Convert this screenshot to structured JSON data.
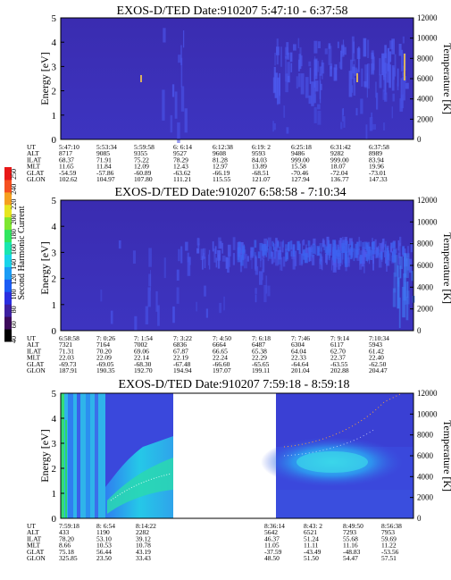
{
  "chart_data": [
    {
      "type": "heatmap",
      "title": "EXOS-D/TED   Date:910207  5:47:10 - 6:37:58",
      "ylabel": "Energy [eV]",
      "y2label": "Temperature [K]",
      "ylim": [
        0,
        5
      ],
      "y2lim": [
        0,
        12000
      ],
      "yticks": [
        "0",
        "1",
        "2",
        "3",
        "4",
        "5"
      ],
      "y2ticks": [
        "0",
        "2000",
        "4000",
        "6000",
        "8000",
        "10000",
        "12000"
      ],
      "row_labels": [
        "UT",
        "ALT",
        "ILAT",
        "MLT",
        "GLAT",
        "GLON"
      ],
      "columns": [
        [
          "5:47:10",
          "8717",
          "68.37",
          "11.65",
          "-54.59",
          "102.62"
        ],
        [
          "5:53:34",
          "9085",
          "71.91",
          "11.84",
          "-57.86",
          "104.97"
        ],
        [
          "5:59:58",
          "9355",
          "75.22",
          "12.09",
          "-60.89",
          "107.80"
        ],
        [
          "6: 6:14",
          "9527",
          "78.29",
          "12.43",
          "-63.62",
          "111.21"
        ],
        [
          "6:12:38",
          "9608",
          "81.28",
          "12.97",
          "-66.19",
          "115.55"
        ],
        [
          "6:19: 2",
          "9593",
          "84.03",
          "13.89",
          "-68.51",
          "121.07"
        ],
        [
          "6:25:18",
          "9486",
          "999.00",
          "15.58",
          "-70.46",
          "127.94"
        ],
        [
          "6:31:42",
          "9282",
          "999.00",
          "18.07",
          "-72.04",
          "136.77"
        ],
        [
          "6:37:58",
          "8989",
          "83.94",
          "19.96",
          "-73.01",
          "147.33"
        ]
      ]
    },
    {
      "type": "heatmap",
      "title": "EXOS-D/TED   Date:910207  6:58:58 - 7:10:34",
      "ylabel": "Energy [eV]",
      "y2label": "Temperature [K]",
      "ylim": [
        0,
        5
      ],
      "y2lim": [
        0,
        12000
      ],
      "yticks": [
        "0",
        "1",
        "2",
        "3",
        "4",
        "5"
      ],
      "y2ticks": [
        "0",
        "2000",
        "4000",
        "6000",
        "8000",
        "10000",
        "12000"
      ],
      "row_labels": [
        "UT",
        "ALT",
        "ILAT",
        "MLT",
        "GLAT",
        "GLON"
      ],
      "columns": [
        [
          "6:58:58",
          "7321",
          "71.31",
          "22.03",
          "-69.73",
          "187.91"
        ],
        [
          "7: 0:26",
          "7164",
          "70.20",
          "22.09",
          "-69.05",
          "190.35"
        ],
        [
          "7: 1:54",
          "7002",
          "69.06",
          "22.14",
          "-68.30",
          "192.70"
        ],
        [
          "7: 3:22",
          "6836",
          "67.87",
          "22.19",
          "-67.48",
          "194.94"
        ],
        [
          "7: 4:50",
          "6664",
          "66.65",
          "22.24",
          "-66.60",
          "197.07"
        ],
        [
          "7: 6:18",
          "6487",
          "65.38",
          "22.29",
          "-65.65",
          "199.11"
        ],
        [
          "7: 7:46",
          "6304",
          "64.04",
          "22.33",
          "-64.64",
          "201.04"
        ],
        [
          "7: 9:14",
          "6117",
          "62.70",
          "22.37",
          "-63.55",
          "202.88"
        ],
        [
          "7:10:34",
          "5943",
          "61.42",
          "22.40",
          "-62.50",
          "204.47"
        ]
      ]
    },
    {
      "type": "heatmap",
      "title": "EXOS-D/TED   Date:910207  7:59:18 - 8:59:18",
      "ylabel": "Energy [eV]",
      "y2label": "Temperature [K]",
      "ylim": [
        0,
        5
      ],
      "y2lim": [
        0,
        12000
      ],
      "yticks": [
        "0",
        "1",
        "2",
        "3",
        "4",
        "5"
      ],
      "y2ticks": [
        "0",
        "2000",
        "4000",
        "6000",
        "8000",
        "10000",
        "12000"
      ],
      "row_labels": [
        "UT",
        "ALT",
        "ILAT",
        "MLT",
        "GLAT",
        "GLON"
      ],
      "columns": [
        [
          "7:59:18",
          "433",
          "78.20",
          "8.66",
          "75.18",
          "325.85"
        ],
        [
          "8: 6:54",
          "1190",
          "53.10",
          "10.53",
          "56.44",
          "23.50"
        ],
        [
          "8:14:22",
          "2282",
          "39.12",
          "10.78",
          "43.19",
          "33.43"
        ],
        [
          "8:36:14",
          "5642",
          "46.37",
          "11.05",
          "-37.59",
          "48.50"
        ],
        [
          "8:43: 2",
          "6521",
          "51.24",
          "11.11",
          "-43.49",
          "51.50"
        ],
        [
          "8:49:50",
          "7293",
          "55.68",
          "11.16",
          "-48.83",
          "54.47"
        ],
        [
          "8:56:38",
          "7953",
          "59.69",
          "11.22",
          "-53.56",
          "57.51"
        ]
      ]
    }
  ],
  "colorbar": {
    "label": "Second Harmonic Current",
    "ticks": [
      "40",
      "60",
      "80",
      "100",
      "120",
      "140",
      "160",
      "180",
      "200",
      "220",
      "240",
      "250"
    ],
    "colors": [
      "#000000",
      "#3c0a5a",
      "#3d1fa0",
      "#2a2ee0",
      "#1a5cf5",
      "#1a9cf5",
      "#18d4ea",
      "#18e6b0",
      "#30e660",
      "#7ee630",
      "#e6e620",
      "#f5a020",
      "#f55020",
      "#e81818"
    ]
  },
  "colors": {
    "background": "#3a2fb6",
    "background_dark": "#3322a8",
    "streak_blue": "#4a52e8",
    "cyan": "#27c9e6",
    "green": "#2ad86a",
    "light_blue": "#3d8ef0"
  }
}
